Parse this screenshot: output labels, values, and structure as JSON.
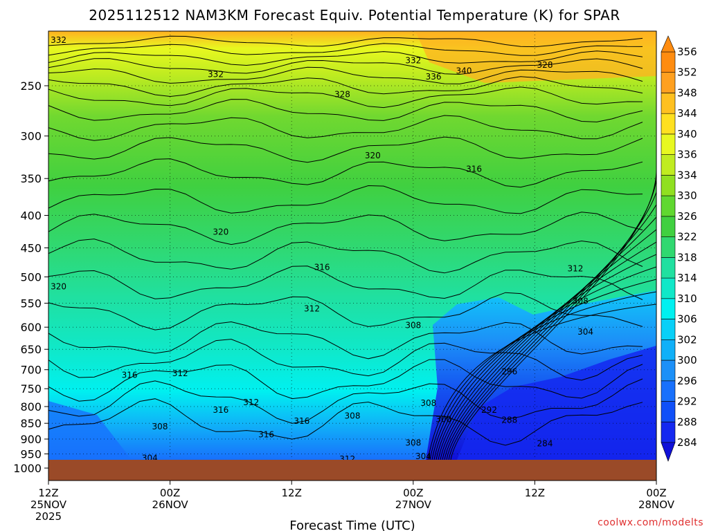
{
  "chart_data": {
    "type": "heatmap",
    "title": "2025112512 NAM3KM Forecast Equiv. Potential Temperature (K) for SPAR",
    "xlabel": "Forecast Time (UTC)",
    "ylabel": "",
    "y_ticks": [
      250,
      300,
      350,
      400,
      450,
      500,
      550,
      600,
      650,
      700,
      750,
      800,
      850,
      900,
      950,
      1000
    ],
    "x_ticks": [
      {
        "label1": "12Z",
        "label2": "25NOV",
        "label3": "2025",
        "hours": 0
      },
      {
        "label1": "00Z",
        "label2": "26NOV",
        "label3": "",
        "hours": 12
      },
      {
        "label1": "12Z",
        "label2": "",
        "label3": "",
        "hours": 24
      },
      {
        "label1": "00Z",
        "label2": "27NOV",
        "label3": "",
        "hours": 36
      },
      {
        "label1": "12Z",
        "label2": "",
        "label3": "",
        "hours": 48
      },
      {
        "label1": "00Z",
        "label2": "28NOV",
        "label3": "",
        "hours": 60
      }
    ],
    "xlim": [
      0,
      60
    ],
    "ylim_hpa": [
      1000,
      200
    ],
    "colorbar_levels": [
      284,
      288,
      292,
      296,
      300,
      302,
      306,
      310,
      314,
      318,
      322,
      326,
      330,
      334,
      336,
      340,
      344,
      348,
      352,
      356
    ],
    "colorbar_colors": [
      "#1010d8",
      "#1428f0",
      "#1050f8",
      "#1870fc",
      "#1c90f8",
      "#10b0f8",
      "#08d0f8",
      "#00f0f0",
      "#10e8c8",
      "#20e0a0",
      "#30d870",
      "#40d040",
      "#60d830",
      "#90e020",
      "#c0ec20",
      "#e8f820",
      "#ffe020",
      "#ffc020",
      "#ffa020",
      "#ff8c10"
    ],
    "ground_color": "#9a4a28",
    "grid": true,
    "contour_labels": [
      {
        "text": "332",
        "hours": 1,
        "hpa": 212
      },
      {
        "text": "332",
        "hours": 16.5,
        "hpa": 240
      },
      {
        "text": "328",
        "hours": 29,
        "hpa": 258
      },
      {
        "text": "332",
        "hours": 36,
        "hpa": 228
      },
      {
        "text": "336",
        "hours": 38,
        "hpa": 242
      },
      {
        "text": "340",
        "hours": 41,
        "hpa": 237
      },
      {
        "text": "328",
        "hours": 49,
        "hpa": 232
      },
      {
        "text": "320",
        "hours": 32,
        "hpa": 322
      },
      {
        "text": "316",
        "hours": 42,
        "hpa": 338
      },
      {
        "text": "320",
        "hours": 17,
        "hpa": 425
      },
      {
        "text": "316",
        "hours": 27,
        "hpa": 483
      },
      {
        "text": "312",
        "hours": 52,
        "hpa": 485
      },
      {
        "text": "320",
        "hours": 1,
        "hpa": 518
      },
      {
        "text": "312",
        "hours": 26,
        "hpa": 561
      },
      {
        "text": "308",
        "hours": 52.5,
        "hpa": 546
      },
      {
        "text": "308",
        "hours": 36,
        "hpa": 596
      },
      {
        "text": "304",
        "hours": 53,
        "hpa": 610
      },
      {
        "text": "316",
        "hours": 8,
        "hpa": 714
      },
      {
        "text": "312",
        "hours": 13,
        "hpa": 709
      },
      {
        "text": "296",
        "hours": 45.5,
        "hpa": 705
      },
      {
        "text": "312",
        "hours": 20,
        "hpa": 788
      },
      {
        "text": "316",
        "hours": 17,
        "hpa": 810
      },
      {
        "text": "308",
        "hours": 37.5,
        "hpa": 790
      },
      {
        "text": "292",
        "hours": 43.5,
        "hpa": 810
      },
      {
        "text": "308",
        "hours": 30,
        "hpa": 828
      },
      {
        "text": "300",
        "hours": 39,
        "hpa": 838
      },
      {
        "text": "288",
        "hours": 45.5,
        "hpa": 840
      },
      {
        "text": "308",
        "hours": 11,
        "hpa": 860
      },
      {
        "text": "316",
        "hours": 25,
        "hpa": 843
      },
      {
        "text": "316",
        "hours": 21.5,
        "hpa": 885
      },
      {
        "text": "308",
        "hours": 36,
        "hpa": 913
      },
      {
        "text": "284",
        "hours": 49,
        "hpa": 915
      },
      {
        "text": "312",
        "hours": 29.5,
        "hpa": 968
      },
      {
        "text": "304",
        "hours": 10,
        "hpa": 964
      },
      {
        "text": "304",
        "hours": 37,
        "hpa": 958
      }
    ]
  },
  "credit": "coolwx.com/modelts"
}
